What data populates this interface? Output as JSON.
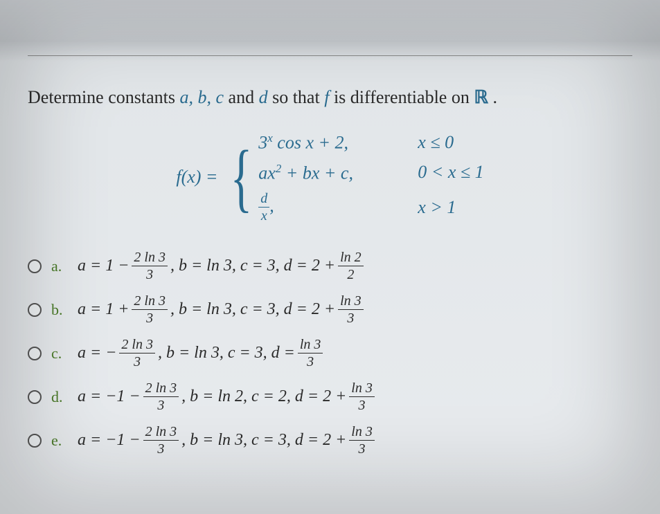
{
  "prompt": {
    "pre": "Determine constants ",
    "vars": "a, b, c",
    "mid1": " and ",
    "vard": "d",
    "mid2": " so that ",
    "varf": "f",
    "mid3": " is differentiable on ",
    "set": "ℝ",
    "end": "."
  },
  "equation": {
    "lhs": "f(x) =",
    "case1_expr_a": "3",
    "case1_expr_b": " cos x + 2,",
    "case1_exp": "x",
    "case1_cond": "x ≤ 0",
    "case2_expr": "ax",
    "case2_exp": "2",
    "case2_rest": " + bx + c,",
    "case2_cond": "0 < x ≤ 1",
    "case3_num": "d",
    "case3_den": "x",
    "case3_comma": ",",
    "case3_cond": "x > 1"
  },
  "choices": [
    {
      "letter": "a.",
      "a_pre": "a = 1 − ",
      "a_num": "2 ln 3",
      "a_den": "3",
      "b": ", b = ln 3, c = 3, d = 2 + ",
      "d_num": "ln 2",
      "d_den": "2"
    },
    {
      "letter": "b.",
      "a_pre": "a = 1 + ",
      "a_num": "2 ln 3",
      "a_den": "3",
      "b": ", b = ln 3, c = 3, d = 2 + ",
      "d_num": "ln 3",
      "d_den": "3"
    },
    {
      "letter": "c.",
      "a_pre": "a = − ",
      "a_num": "2 ln 3",
      "a_den": "3",
      "b": ", b = ln 3, c = 3, d = ",
      "d_num": "ln 3",
      "d_den": "3"
    },
    {
      "letter": "d.",
      "a_pre": "a = −1 − ",
      "a_num": "2 ln 3",
      "a_den": "3",
      "b": ", b = ln 2, c = 2, d = 2 + ",
      "d_num": "ln 3",
      "d_den": "3"
    },
    {
      "letter": "e.",
      "a_pre": "a = −1 − ",
      "a_num": "2 ln 3",
      "a_den": "3",
      "b": ", b = ln 3, c = 3, d = 2 + ",
      "d_num": "ln 3",
      "d_den": "3"
    }
  ],
  "colors": {
    "math": "#2a6b8f",
    "letter": "#4a7a28",
    "text": "#2a2a2a"
  }
}
